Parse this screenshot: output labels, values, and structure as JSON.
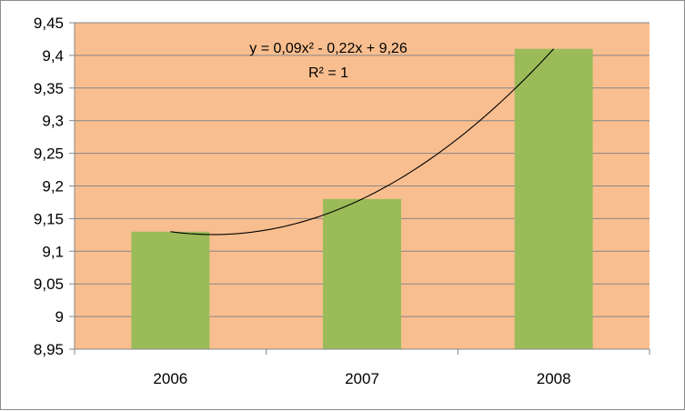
{
  "colors": {
    "plot_area": "#F9BE8F",
    "bar_fill": "#9BBB59",
    "gridline": "#868686",
    "axis": "#868686",
    "trendline": "#000000"
  },
  "chart_data": {
    "type": "bar",
    "title": "",
    "xlabel": "",
    "ylabel": "",
    "categories": [
      "2006",
      "2007",
      "2008"
    ],
    "values": [
      9.13,
      9.18,
      9.41
    ],
    "ylim": [
      8.95,
      9.45
    ],
    "y_ticks": [
      8.95,
      9.0,
      9.05,
      9.1,
      9.15,
      9.2,
      9.25,
      9.3,
      9.35,
      9.4,
      9.45
    ],
    "y_tick_labels": [
      "8,95",
      "9",
      "9,05",
      "9,1",
      "9,15",
      "9,2",
      "9,25",
      "9,3",
      "9,35",
      "9,4",
      "9,45"
    ],
    "grid": true,
    "legend": "none",
    "trendline": {
      "type": "polynomial-2",
      "coefficients": [
        0.09,
        -0.22,
        9.26
      ],
      "equation_label": "y = 0,09x² - 0,22x + 9,26",
      "r2_label": "R² = 1"
    }
  }
}
